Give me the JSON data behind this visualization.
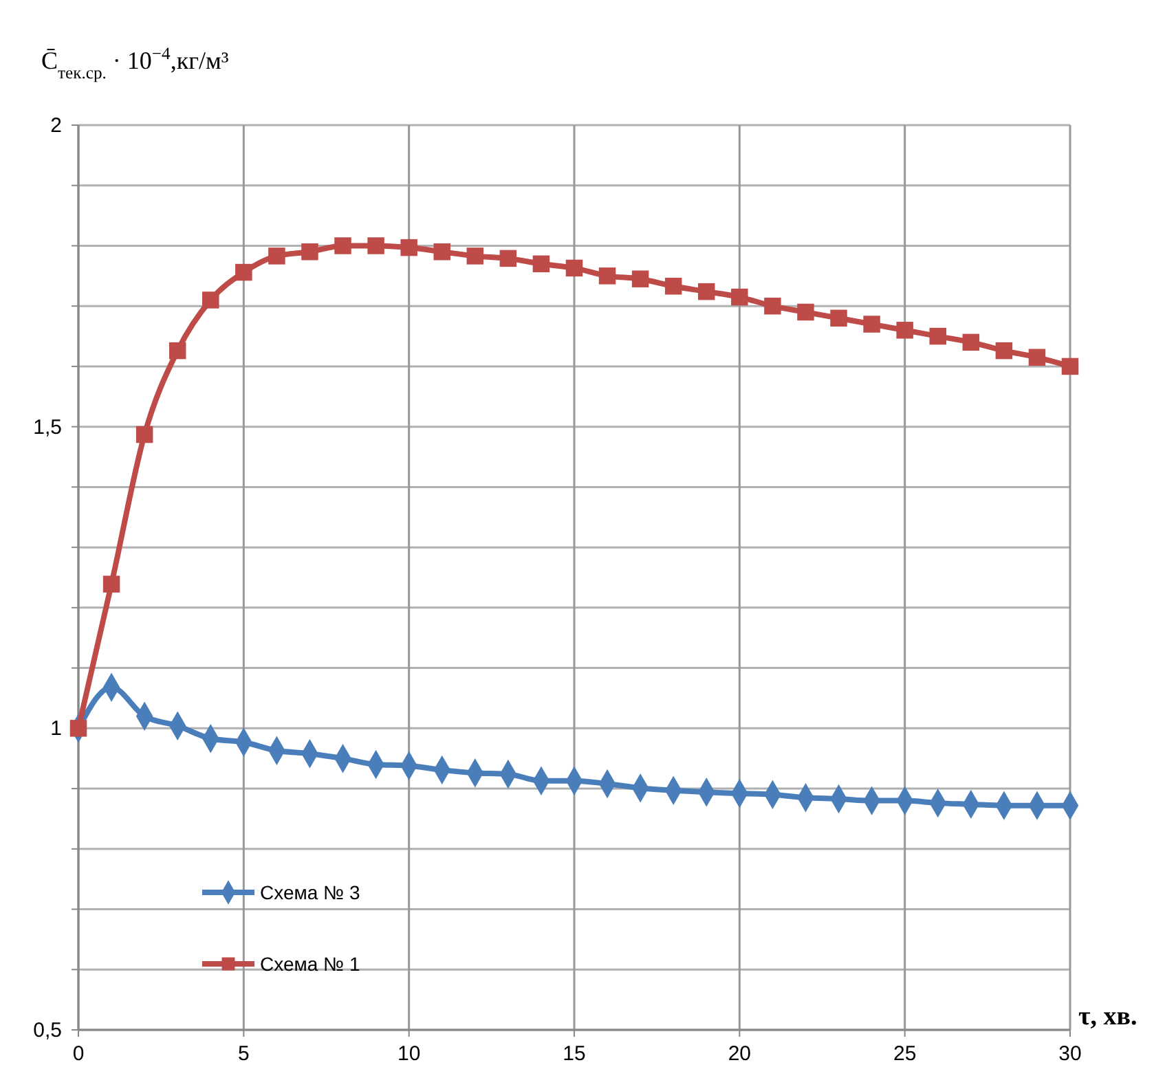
{
  "chart_data": {
    "type": "line",
    "ylabel": "C̄$_{тек.ср.}$ · 10$^{−4}$,кг/м³",
    "xlabel": "τ, хв.",
    "x": [
      0,
      1,
      2,
      3,
      4,
      5,
      6,
      7,
      8,
      9,
      10,
      11,
      12,
      13,
      14,
      15,
      16,
      17,
      18,
      19,
      20,
      21,
      22,
      23,
      24,
      25,
      26,
      27,
      28,
      29,
      30
    ],
    "series": [
      {
        "name": "Схема № 3",
        "color": "#4a7ebb",
        "marker": "diamond",
        "values": [
          1.0,
          1.068,
          1.02,
          1.004,
          0.983,
          0.977,
          0.963,
          0.958,
          0.95,
          0.94,
          0.938,
          0.931,
          0.926,
          0.924,
          0.913,
          0.913,
          0.908,
          0.901,
          0.897,
          0.894,
          0.892,
          0.89,
          0.885,
          0.883,
          0.88,
          0.88,
          0.876,
          0.874,
          0.872,
          0.872,
          0.872
        ]
      },
      {
        "name": "Схема № 1",
        "color": "#be4b48",
        "marker": "square",
        "values": [
          1.0,
          1.239,
          1.487,
          1.626,
          1.71,
          1.756,
          1.783,
          1.79,
          1.8,
          1.8,
          1.797,
          1.79,
          1.783,
          1.779,
          1.77,
          1.763,
          1.75,
          1.745,
          1.733,
          1.724,
          1.715,
          1.7,
          1.69,
          1.68,
          1.67,
          1.66,
          1.65,
          1.64,
          1.626,
          1.615,
          1.6
        ]
      }
    ],
    "xlim": [
      0,
      30
    ],
    "xticks": [
      0,
      5,
      10,
      15,
      20,
      25,
      30
    ],
    "ylim": [
      0.5,
      2
    ],
    "yticks": [
      {
        "value": 0.5,
        "label": "0,5"
      },
      {
        "value": 0.6,
        "label": null
      },
      {
        "value": 0.7,
        "label": null
      },
      {
        "value": 0.8,
        "label": null
      },
      {
        "value": 0.9,
        "label": null
      },
      {
        "value": 1,
        "label": "1"
      },
      {
        "value": 1.1,
        "label": null
      },
      {
        "value": 1.2,
        "label": null
      },
      {
        "value": 1.3,
        "label": null
      },
      {
        "value": 1.4,
        "label": null
      },
      {
        "value": 1.5,
        "label": "1,5"
      },
      {
        "value": 1.6,
        "label": null
      },
      {
        "value": 1.7,
        "label": null
      },
      {
        "value": 1.8,
        "label": null
      },
      {
        "value": 1.9,
        "label": null
      },
      {
        "value": 2,
        "label": "2"
      }
    ],
    "grid": true,
    "legend": "bottom left",
    "line_style": "solid"
  }
}
